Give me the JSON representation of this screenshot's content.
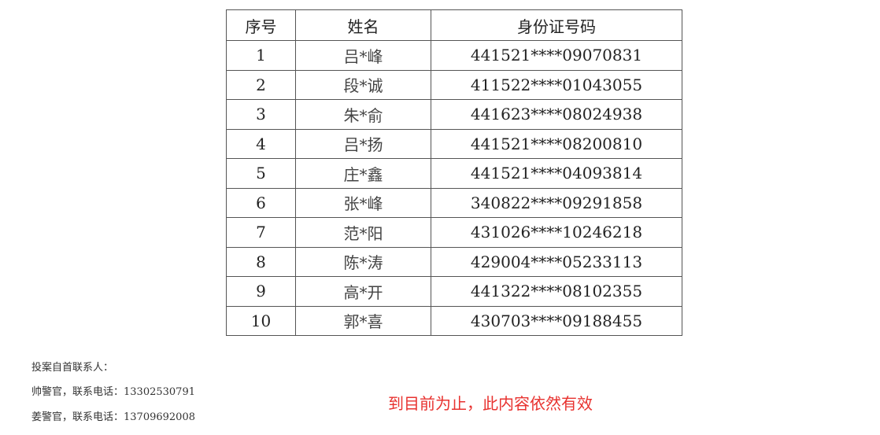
{
  "table": {
    "headers": [
      "序号",
      "姓名",
      "身份证号码"
    ],
    "rows": [
      {
        "no": "1",
        "name": "吕*峰",
        "id": "441521****09070831"
      },
      {
        "no": "2",
        "name": "段*诚",
        "id": "411522****01043055"
      },
      {
        "no": "3",
        "name": "朱*俞",
        "id": "441623****08024938"
      },
      {
        "no": "4",
        "name": "吕*扬",
        "id": "441521****08200810"
      },
      {
        "no": "5",
        "name": "庄*鑫",
        "id": "441521****04093814"
      },
      {
        "no": "6",
        "name": "张*峰",
        "id": "340822****09291858"
      },
      {
        "no": "7",
        "name": "范*阳",
        "id": "431026****10246218"
      },
      {
        "no": "8",
        "name": "陈*涛",
        "id": "429004****05233113"
      },
      {
        "no": "9",
        "name": "高*开",
        "id": "441322****08102355"
      },
      {
        "no": "10",
        "name": "郭*喜",
        "id": "430703****09188455"
      }
    ]
  },
  "contacts": {
    "heading": "投案自首联系人：",
    "lines": [
      "帅警官，联系电话：13302530791",
      "姜警官，联系电话：13709692008"
    ]
  },
  "notice": {
    "text": "到目前为止，此内容依然有效",
    "color": "#e8322f"
  }
}
